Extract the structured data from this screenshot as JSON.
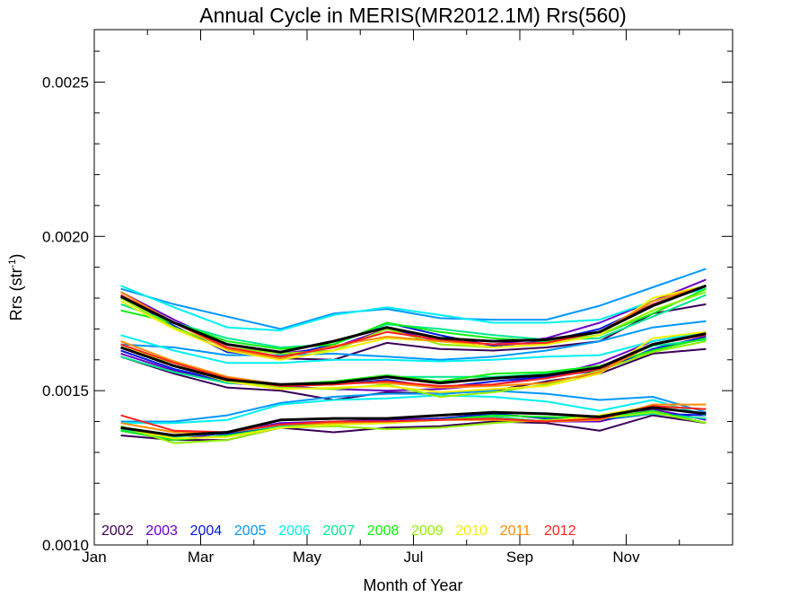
{
  "chart_data": {
    "type": "line",
    "title": "Annual Cycle in MERIS(MR2012.1M) Rrs(560)",
    "xlabel": "Month of Year",
    "ylabel_main": "Rrs (str",
    "ylabel_sup": "-1",
    "ylabel_close": ")",
    "xlim": [
      1,
      13
    ],
    "ylim": [
      0.001,
      0.00267
    ],
    "x_ticks": [
      {
        "value": 1,
        "label": "Jan"
      },
      {
        "value": 3,
        "label": "Mar"
      },
      {
        "value": 5,
        "label": "May"
      },
      {
        "value": 7,
        "label": "Jul"
      },
      {
        "value": 9,
        "label": "Sep"
      },
      {
        "value": 11,
        "label": "Nov"
      }
    ],
    "y_ticks": [
      {
        "value": 0.001,
        "label": "0.0010"
      },
      {
        "value": 0.0015,
        "label": "0.0015"
      },
      {
        "value": 0.002,
        "label": "0.0020"
      },
      {
        "value": 0.0025,
        "label": "0.0025"
      }
    ],
    "x": [
      1.5,
      2.5,
      3.5,
      4.5,
      5.5,
      6.5,
      7.5,
      8.5,
      9.5,
      10.5,
      11.5,
      12.5
    ],
    "grid": false,
    "legend_position": "bottom-left",
    "series": [
      {
        "name": "2002",
        "color": "#3a0058",
        "values": [
          [
            0.0018,
            0.00172,
            0.00164,
            0.001605,
            0.0016,
            0.001655,
            0.001635,
            0.00163,
            0.00164,
            0.00166,
            0.00175,
            0.00178
          ],
          [
            0.00161,
            0.001555,
            0.00151,
            0.0015,
            0.00147,
            0.001495,
            0.00149,
            0.0015,
            0.00153,
            0.001555,
            0.00162,
            0.001635
          ],
          [
            0.001355,
            0.00134,
            0.00134,
            0.00138,
            0.001365,
            0.00138,
            0.001385,
            0.0014,
            0.001395,
            0.00137,
            0.00142,
            0.001395
          ]
        ]
      },
      {
        "name": "2003",
        "color": "#6a00c8",
        "values": [
          [
            0.00182,
            0.00173,
            0.00165,
            0.00162,
            0.00164,
            0.0017,
            0.00166,
            0.00165,
            0.00167,
            0.00172,
            0.00179,
            0.00186
          ],
          [
            0.00162,
            0.001565,
            0.001525,
            0.001515,
            0.001505,
            0.0015,
            0.001505,
            0.00152,
            0.001545,
            0.00159,
            0.00166,
            0.00169
          ],
          [
            0.00137,
            0.00134,
            0.001365,
            0.001395,
            0.0014,
            0.001405,
            0.00141,
            0.001415,
            0.0014,
            0.0014,
            0.00144,
            0.001405
          ]
        ]
      },
      {
        "name": "2004",
        "color": "#0018e0",
        "values": [
          [
            0.00181,
            0.00171,
            0.001625,
            0.00161,
            0.00165,
            0.00172,
            0.00168,
            0.001645,
            0.00166,
            0.0017,
            0.00178,
            0.00184
          ],
          [
            0.00163,
            0.00157,
            0.00153,
            0.001515,
            0.00152,
            0.001535,
            0.00151,
            0.00153,
            0.001545,
            0.001565,
            0.001635,
            0.001675
          ],
          [
            0.00138,
            0.001355,
            0.00136,
            0.001385,
            0.0014,
            0.0014,
            0.00141,
            0.001425,
            0.00141,
            0.001405,
            0.001425,
            0.00142
          ]
        ]
      },
      {
        "name": "2005",
        "color": "#0098ff",
        "values": [
          [
            0.00183,
            0.00178,
            0.00174,
            0.0017,
            0.00175,
            0.001765,
            0.001735,
            0.00173,
            0.00173,
            0.001775,
            0.001835,
            0.001895
          ],
          [
            0.00165,
            0.00164,
            0.001615,
            0.001615,
            0.00162,
            0.00161,
            0.0016,
            0.00161,
            0.00163,
            0.00166,
            0.001705,
            0.001725
          ],
          [
            0.0014,
            0.0014,
            0.00142,
            0.00146,
            0.00148,
            0.00149,
            0.00149,
            0.0015,
            0.00149,
            0.00147,
            0.00148,
            0.00143
          ]
        ]
      },
      {
        "name": "2006",
        "color": "#00f0f0",
        "values": [
          [
            0.00184,
            0.00177,
            0.001705,
            0.001695,
            0.001745,
            0.00177,
            0.001745,
            0.00172,
            0.00172,
            0.00173,
            0.00179,
            0.00183
          ],
          [
            0.00168,
            0.00163,
            0.00159,
            0.00159,
            0.0016,
            0.0016,
            0.001595,
            0.0016,
            0.00161,
            0.001615,
            0.00166,
            0.00169
          ],
          [
            0.001395,
            0.001395,
            0.001405,
            0.001455,
            0.00147,
            0.001475,
            0.001485,
            0.00148,
            0.001465,
            0.001435,
            0.00147,
            0.00142
          ]
        ]
      },
      {
        "name": "2007",
        "color": "#00e890",
        "values": [
          [
            0.00178,
            0.00172,
            0.00167,
            0.00164,
            0.00165,
            0.001715,
            0.0017,
            0.00168,
            0.001665,
            0.00167,
            0.00174,
            0.00181
          ],
          [
            0.00161,
            0.00156,
            0.001525,
            0.00152,
            0.001525,
            0.001545,
            0.001545,
            0.001545,
            0.001555,
            0.001575,
            0.001645,
            0.001665
          ],
          [
            0.001375,
            0.00135,
            0.001365,
            0.001385,
            0.00139,
            0.001395,
            0.001405,
            0.001415,
            0.0014,
            0.00141,
            0.001425,
            0.00141
          ]
        ]
      },
      {
        "name": "2008",
        "color": "#10f010",
        "values": [
          [
            0.00176,
            0.00172,
            0.00166,
            0.001635,
            0.00165,
            0.00172,
            0.00169,
            0.00167,
            0.00166,
            0.00168,
            0.00175,
            0.00183
          ],
          [
            0.00164,
            0.00158,
            0.00154,
            0.00152,
            0.00153,
            0.00155,
            0.00153,
            0.001555,
            0.00156,
            0.00158,
            0.00163,
            0.00167
          ],
          [
            0.00137,
            0.00134,
            0.001355,
            0.00138,
            0.001395,
            0.0014,
            0.001405,
            0.00142,
            0.001415,
            0.00141,
            0.001435,
            0.001395
          ]
        ]
      },
      {
        "name": "2009",
        "color": "#90f000",
        "values": [
          [
            0.0018,
            0.001705,
            0.00164,
            0.00162,
            0.00163,
            0.0017,
            0.00165,
            0.00164,
            0.00165,
            0.00168,
            0.00176,
            0.00182
          ],
          [
            0.00164,
            0.00159,
            0.001535,
            0.00151,
            0.001505,
            0.00152,
            0.00148,
            0.001495,
            0.00152,
            0.001565,
            0.001625,
            0.00166
          ],
          [
            0.001385,
            0.00133,
            0.00134,
            0.00138,
            0.001385,
            0.001375,
            0.00138,
            0.001395,
            0.001405,
            0.00141,
            0.00143,
            0.001395
          ]
        ]
      },
      {
        "name": "2010",
        "color": "#f0f000",
        "values": [
          [
            0.00179,
            0.0017,
            0.00163,
            0.0016,
            0.00163,
            0.00167,
            0.00166,
            0.00164,
            0.00165,
            0.00168,
            0.0018,
            0.00184
          ],
          [
            0.00165,
            0.00158,
            0.00153,
            0.001505,
            0.00151,
            0.001515,
            0.001495,
            0.001505,
            0.001515,
            0.001555,
            0.00167,
            0.00169
          ],
          [
            0.00138,
            0.001345,
            0.00135,
            0.00138,
            0.00139,
            0.001395,
            0.001405,
            0.00141,
            0.0014,
            0.00142,
            0.00145,
            0.00144
          ]
        ]
      },
      {
        "name": "2011",
        "color": "#ff8c00",
        "values": [
          [
            0.00182,
            0.00172,
            0.001635,
            0.001605,
            0.001645,
            0.001675,
            0.00166,
            0.00165,
            0.001655,
            0.00169,
            0.00179,
            0.00184
          ],
          [
            0.00166,
            0.001595,
            0.001545,
            0.00152,
            0.001525,
            0.001525,
            0.00151,
            0.001515,
            0.001525,
            0.00156,
            0.00165,
            0.001685
          ],
          [
            0.001395,
            0.001365,
            0.001365,
            0.00139,
            0.001395,
            0.0014,
            0.001405,
            0.001405,
            0.0014,
            0.001405,
            0.001455,
            0.001455
          ]
        ]
      },
      {
        "name": "2012",
        "color": "#ff2020",
        "values": [
          [
            0.00181,
            0.00172,
            0.00164,
            0.00161,
            0.00164,
            0.00169,
            0.001665,
            0.00165,
            0.001655,
            0.00169,
            0.00178,
            0.00184
          ],
          [
            0.00165,
            0.00159,
            0.00154,
            0.001515,
            0.00152,
            0.00153,
            0.001515,
            0.00152,
            0.00154,
            0.00157,
            0.00165,
            0.00168
          ],
          [
            0.00142,
            0.00137,
            0.001365,
            0.00139,
            0.0014,
            0.0014,
            0.001405,
            0.00141,
            0.0014,
            0.00141,
            0.00145,
            0.00144
          ]
        ]
      }
    ],
    "mean_color": "#000000",
    "mean_lines": [
      [
        0.001805,
        0.00172,
        0.00165,
        0.001625,
        0.00166,
        0.001705,
        0.00167,
        0.00166,
        0.001665,
        0.00169,
        0.001775,
        0.00184
      ],
      [
        0.00164,
        0.00158,
        0.001535,
        0.00152,
        0.001525,
        0.001545,
        0.001525,
        0.00154,
        0.00155,
        0.001575,
        0.00165,
        0.001685
      ],
      [
        0.00138,
        0.001355,
        0.001365,
        0.001405,
        0.00141,
        0.00141,
        0.00142,
        0.00143,
        0.001425,
        0.001415,
        0.001445,
        0.001425
      ]
    ]
  }
}
